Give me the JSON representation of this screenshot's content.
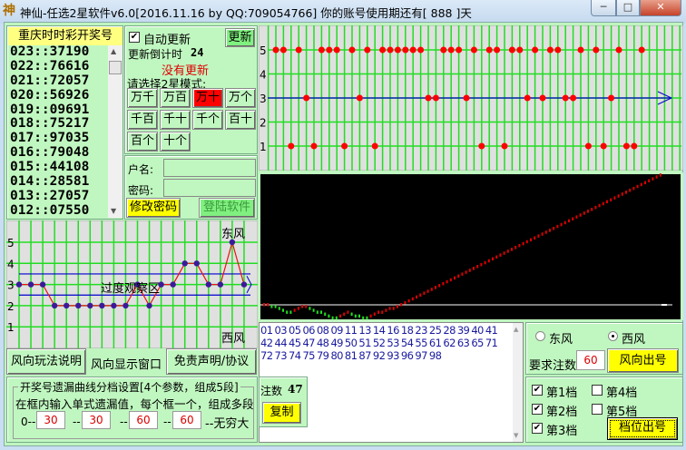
{
  "window": {
    "title": "神仙-任选2星软件v6.0[2016.11.16 by QQ:709054766] 你的账号使用期还有[ 888 ]天",
    "minimize": "─",
    "maximize": "□",
    "close": "✕"
  },
  "draw_list": {
    "header": "重庆时时彩开奖号",
    "rows": [
      "023::37190",
      "022::76616",
      "021::72057",
      "020::56926",
      "019::09691",
      "018::75217",
      "017::97035",
      "016::79048",
      "015::44108",
      "014::28581",
      "013::27057",
      "012::07550"
    ]
  },
  "controls": {
    "auto_update_label": "自动更新",
    "auto_update_checked": true,
    "update_button": "更新",
    "countdown_label": "更新倒计时",
    "countdown_value": "24",
    "status": "没有更新",
    "mode_prompt": "请选择2星模式:",
    "modes": [
      "万千",
      "万百",
      "万十",
      "万个",
      "千百",
      "千十",
      "千个",
      "百十",
      "百个",
      "十个"
    ],
    "selected_mode": "万十",
    "active_color": "#ff0000"
  },
  "login": {
    "username_label": "户名:",
    "password_label": "密码:",
    "username": "",
    "password": "",
    "change_password": "修改密码",
    "login_button": "登陆软件"
  },
  "position_chart": {
    "y_ticks": [
      "5",
      "4",
      "3",
      "2",
      "1"
    ],
    "values": [
      5,
      5,
      1,
      5,
      3,
      1,
      5,
      5,
      5,
      1,
      5,
      3,
      5,
      1,
      5,
      5,
      5,
      5,
      5,
      5,
      3,
      3,
      5,
      5,
      5,
      3,
      5,
      1,
      5,
      5,
      1,
      5,
      5,
      3,
      5,
      3,
      5,
      5,
      3,
      3,
      5,
      1,
      5,
      1,
      3,
      5,
      1,
      1,
      5
    ],
    "dot_color": "#ff0000",
    "center_line_color": "#0000cc"
  },
  "chart_data": {
    "type": "line",
    "values": [
      0,
      0,
      -1,
      -1,
      -2,
      -3,
      -4,
      -4,
      -3,
      -2,
      -1,
      -1,
      -2,
      -3,
      -4,
      -4,
      -5,
      -6,
      -7,
      -7,
      -6,
      -5,
      -4,
      -5,
      -6,
      -6,
      -7,
      -7,
      -6,
      -5,
      -4,
      -4,
      -3,
      -2,
      -2,
      -1,
      0,
      1,
      2,
      3,
      4,
      5,
      6,
      7,
      8,
      9,
      10,
      11,
      12,
      13,
      14,
      15,
      16,
      17,
      18,
      19,
      20,
      21,
      22,
      23,
      24,
      25,
      26,
      27,
      28,
      29,
      30,
      31,
      32,
      33,
      34,
      35,
      36,
      37,
      38,
      39,
      40,
      41,
      42,
      43,
      44,
      45,
      46,
      47,
      48,
      49,
      50,
      51,
      52,
      53,
      54,
      55,
      56,
      57,
      58,
      59,
      60,
      61,
      62,
      63,
      64,
      65,
      66,
      67,
      68
    ],
    "up_color": "#dd0000",
    "down_color": "#22dd22",
    "background": "#000000"
  },
  "wind_chart": {
    "y_ticks": [
      "5",
      "4",
      "3",
      "2",
      "1"
    ],
    "values": [
      3,
      3,
      3,
      2,
      2,
      2,
      2,
      2,
      2,
      2,
      3,
      2,
      3,
      3,
      4,
      4,
      3,
      3,
      5,
      3
    ],
    "east_label": "东风",
    "west_label": "西风",
    "zone_label": "过度观察区",
    "band": [
      2.5,
      3.5
    ]
  },
  "wind_buttons": {
    "rules": "风向玩法说明",
    "window_label": "风向显示窗口",
    "disclaimer": "免责声明/协议"
  },
  "settings": {
    "legend": "开奖号遗漏曲线分档设置[4个参数，组成5段]",
    "instruction": "在框内输入单式遗漏值，每个框一个，组成多段",
    "start": "0--",
    "sep": "--",
    "end": "--无穷大",
    "values": [
      "30",
      "30",
      "60",
      "60"
    ]
  },
  "numbers": {
    "text": "01 03 05 06 08 09 11 13 14 16 18 23 25 28 39 40 41 42 44 45 47 48 49 50 51 52 53 54 55 61 62 63 65 71 72 73 74 75 79 80 81 87 92 93 96 97 98",
    "count_label": "注数",
    "count": "47",
    "copy_button": "复制"
  },
  "wind_select": {
    "east": "东风",
    "west": "西风",
    "selected": "西风",
    "required_label": "要求注数",
    "required": "60",
    "output_button": "风向出号"
  },
  "gears": {
    "items": [
      {
        "label": "第1档",
        "checked": true
      },
      {
        "label": "第2档",
        "checked": true
      },
      {
        "label": "第3档",
        "checked": true
      },
      {
        "label": "第4档",
        "checked": false
      },
      {
        "label": "第5档",
        "checked": false
      }
    ],
    "output_button": "档位出号"
  }
}
